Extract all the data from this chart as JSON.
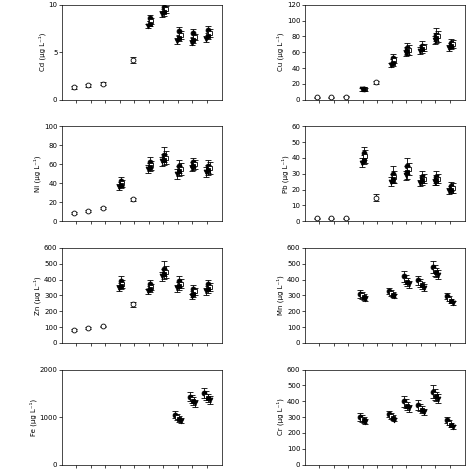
{
  "panels": [
    {
      "ylabel": "Cd (µg L⁻¹)",
      "ylim": [
        0,
        10
      ],
      "yticks": [
        0,
        5,
        10
      ],
      "col": 0,
      "row": 0,
      "series": [
        {
          "x": [
            1,
            2,
            3
          ],
          "y": [
            1.3,
            1.5,
            1.7
          ],
          "yerr": [
            0.15,
            0.15,
            0.15
          ],
          "marker": "o",
          "fill": false
        },
        {
          "x": [
            5
          ],
          "y": [
            4.2
          ],
          "yerr": [
            0.3
          ],
          "marker": "o",
          "fill": false
        },
        {
          "x": [
            6,
            7,
            8,
            9,
            10
          ],
          "y": [
            8.6,
            9.8,
            7.2,
            7.0,
            7.3
          ],
          "yerr": [
            0.35,
            0.5,
            0.5,
            0.45,
            0.5
          ],
          "marker": "o",
          "fill": true
        },
        {
          "x": [
            6,
            7,
            8,
            9,
            10
          ],
          "y": [
            8.3,
            9.5,
            6.8,
            6.6,
            7.0
          ],
          "yerr": [
            0.3,
            0.4,
            0.4,
            0.35,
            0.4
          ],
          "marker": "s",
          "fill": false
        },
        {
          "x": [
            6,
            7,
            8,
            9,
            10
          ],
          "y": [
            8.0,
            9.2,
            6.5,
            6.3,
            6.7
          ],
          "yerr": [
            0.25,
            0.35,
            0.35,
            0.3,
            0.35
          ],
          "marker": "s",
          "fill": true
        },
        {
          "x": [
            6,
            7,
            8,
            9,
            10
          ],
          "y": [
            7.8,
            9.0,
            6.2,
            6.0,
            6.4
          ],
          "yerr": [
            0.2,
            0.3,
            0.3,
            0.25,
            0.3
          ],
          "marker": "v",
          "fill": true
        }
      ]
    },
    {
      "ylabel": "Ni (µg L⁻¹)",
      "ylim": [
        0,
        100
      ],
      "yticks": [
        0,
        20,
        40,
        60,
        80,
        100
      ],
      "col": 0,
      "row": 1,
      "series": [
        {
          "x": [
            1,
            2,
            3
          ],
          "y": [
            9,
            11,
            14
          ],
          "yerr": [
            1,
            1,
            1
          ],
          "marker": "o",
          "fill": false
        },
        {
          "x": [
            5
          ],
          "y": [
            23
          ],
          "yerr": [
            2
          ],
          "marker": "o",
          "fill": false
        },
        {
          "x": [
            4,
            6,
            7,
            8,
            9,
            10
          ],
          "y": [
            42,
            62,
            70,
            58,
            62,
            58
          ],
          "yerr": [
            5,
            6,
            8,
            7,
            5,
            7
          ],
          "marker": "o",
          "fill": true
        },
        {
          "x": [
            4,
            6,
            7,
            8,
            9,
            10
          ],
          "y": [
            40,
            59,
            67,
            55,
            60,
            56
          ],
          "yerr": [
            4,
            5,
            7,
            6,
            5,
            6
          ],
          "marker": "s",
          "fill": false
        },
        {
          "x": [
            4,
            6,
            7,
            8,
            9,
            10
          ],
          "y": [
            38,
            57,
            65,
            53,
            58,
            54
          ],
          "yerr": [
            3,
            4,
            6,
            5,
            4,
            5
          ],
          "marker": "s",
          "fill": true
        },
        {
          "x": [
            4,
            6,
            7,
            8,
            9,
            10
          ],
          "y": [
            36,
            55,
            63,
            50,
            56,
            52
          ],
          "yerr": [
            3,
            4,
            5,
            5,
            3,
            5
          ],
          "marker": "v",
          "fill": true
        }
      ]
    },
    {
      "ylabel": "Zn (µg L⁻¹)",
      "ylim": [
        0,
        600
      ],
      "yticks": [
        0,
        100,
        200,
        300,
        400,
        500,
        600
      ],
      "col": 0,
      "row": 2,
      "series": [
        {
          "x": [
            1,
            2,
            3
          ],
          "y": [
            80,
            95,
            105
          ],
          "yerr": [
            5,
            5,
            5
          ],
          "marker": "o",
          "fill": false
        },
        {
          "x": [
            5
          ],
          "y": [
            245
          ],
          "yerr": [
            15
          ],
          "marker": "o",
          "fill": false
        },
        {
          "x": [
            4,
            6,
            7,
            8,
            9,
            10
          ],
          "y": [
            390,
            375,
            470,
            390,
            340,
            370
          ],
          "yerr": [
            30,
            25,
            45,
            35,
            25,
            30
          ],
          "marker": "o",
          "fill": true
        },
        {
          "x": [
            4,
            6,
            7,
            8,
            9,
            10
          ],
          "y": [
            375,
            355,
            450,
            375,
            325,
            355
          ],
          "yerr": [
            25,
            20,
            38,
            30,
            20,
            25
          ],
          "marker": "s",
          "fill": false
        },
        {
          "x": [
            4,
            6,
            7,
            8,
            9,
            10
          ],
          "y": [
            360,
            340,
            435,
            360,
            310,
            340
          ],
          "yerr": [
            20,
            18,
            32,
            25,
            18,
            22
          ],
          "marker": "s",
          "fill": true
        },
        {
          "x": [
            4,
            6,
            7,
            8,
            9,
            10
          ],
          "y": [
            345,
            325,
            420,
            345,
            295,
            325
          ],
          "yerr": [
            18,
            15,
            28,
            22,
            15,
            20
          ],
          "marker": "v",
          "fill": true
        }
      ]
    },
    {
      "ylabel": "Fe (µg L⁻¹)",
      "ylim": [
        0,
        2000
      ],
      "yticks": [
        0,
        1000,
        2000
      ],
      "col": 0,
      "row": 3,
      "series": [
        {
          "x": [
            8,
            9,
            10
          ],
          "y": [
            1050,
            1430,
            1500
          ],
          "yerr": [
            80,
            100,
            110
          ],
          "marker": "o",
          "fill": true
        },
        {
          "x": [
            8,
            9,
            10
          ],
          "y": [
            1000,
            1380,
            1450
          ],
          "yerr": [
            70,
            90,
            95
          ],
          "marker": "s",
          "fill": false
        },
        {
          "x": [
            8,
            9,
            10
          ],
          "y": [
            960,
            1340,
            1400
          ],
          "yerr": [
            60,
            80,
            90
          ],
          "marker": "s",
          "fill": true
        },
        {
          "x": [
            8,
            9,
            10
          ],
          "y": [
            920,
            1290,
            1350
          ],
          "yerr": [
            55,
            75,
            85
          ],
          "marker": "v",
          "fill": true
        }
      ]
    },
    {
      "ylabel": "Cu (µg L⁻¹)",
      "ylim": [
        0,
        120
      ],
      "yticks": [
        0,
        20,
        40,
        60,
        80,
        100,
        120
      ],
      "col": 1,
      "row": 0,
      "series": [
        {
          "x": [
            1,
            2,
            3
          ],
          "y": [
            3,
            3,
            4
          ],
          "yerr": [
            0.5,
            0.5,
            0.5
          ],
          "marker": "o",
          "fill": false
        },
        {
          "x": [
            5
          ],
          "y": [
            22
          ],
          "yerr": [
            2
          ],
          "marker": "o",
          "fill": false
        },
        {
          "x": [
            4,
            6,
            7,
            8,
            9,
            10
          ],
          "y": [
            13,
            53,
            65,
            68,
            82,
            72
          ],
          "yerr": [
            2,
            5,
            7,
            6,
            8,
            5
          ],
          "marker": "o",
          "fill": true
        },
        {
          "x": [
            4,
            6,
            7,
            8,
            9,
            10
          ],
          "y": [
            13,
            50,
            63,
            66,
            80,
            70
          ],
          "yerr": [
            2,
            4,
            6,
            5,
            7,
            5
          ],
          "marker": "s",
          "fill": false
        },
        {
          "x": [
            4,
            6,
            7,
            8,
            9,
            10
          ],
          "y": [
            13,
            47,
            61,
            64,
            78,
            68
          ],
          "yerr": [
            2,
            4,
            5,
            5,
            6,
            4
          ],
          "marker": "s",
          "fill": true
        },
        {
          "x": [
            4,
            6,
            7,
            8,
            9,
            10
          ],
          "y": [
            13,
            44,
            59,
            62,
            76,
            65
          ],
          "yerr": [
            2,
            3,
            4,
            4,
            5,
            4
          ],
          "marker": "v",
          "fill": true
        }
      ]
    },
    {
      "ylabel": "Pb (µg L⁻¹)",
      "ylim": [
        0,
        60
      ],
      "yticks": [
        0,
        10,
        20,
        30,
        40,
        50,
        60
      ],
      "col": 1,
      "row": 1,
      "series": [
        {
          "x": [
            1,
            2,
            3
          ],
          "y": [
            2,
            2,
            2
          ],
          "yerr": [
            0.3,
            0.3,
            0.3
          ],
          "marker": "o",
          "fill": false
        },
        {
          "x": [
            5
          ],
          "y": [
            15
          ],
          "yerr": [
            2
          ],
          "marker": "o",
          "fill": false
        },
        {
          "x": [
            4,
            6,
            7,
            8,
            9,
            10
          ],
          "y": [
            43,
            30,
            35,
            28,
            28,
            22
          ],
          "yerr": [
            4,
            5,
            5,
            4,
            4,
            3
          ],
          "marker": "o",
          "fill": true
        },
        {
          "x": [
            4,
            6,
            7,
            8,
            9,
            10
          ],
          "y": [
            41,
            28,
            33,
            27,
            27,
            21
          ],
          "yerr": [
            4,
            4,
            4,
            3,
            3,
            3
          ],
          "marker": "s",
          "fill": false
        },
        {
          "x": [
            4,
            6,
            7,
            8,
            9,
            10
          ],
          "y": [
            39,
            27,
            31,
            26,
            26,
            20
          ],
          "yerr": [
            3,
            3,
            4,
            3,
            3,
            2
          ],
          "marker": "s",
          "fill": true
        },
        {
          "x": [
            4,
            6,
            7,
            8,
            9,
            10
          ],
          "y": [
            37,
            25,
            29,
            24,
            25,
            19
          ],
          "yerr": [
            3,
            3,
            3,
            2,
            2,
            2
          ],
          "marker": "v",
          "fill": true
        }
      ]
    },
    {
      "ylabel": "Mn (µg L⁻¹)",
      "ylim": [
        0,
        600
      ],
      "yticks": [
        0,
        100,
        200,
        300,
        400,
        500,
        600
      ],
      "col": 1,
      "row": 2,
      "series": [
        {
          "x": [
            4,
            6,
            7,
            8,
            9,
            10
          ],
          "y": [
            310,
            330,
            420,
            395,
            480,
            295
          ],
          "yerr": [
            25,
            20,
            35,
            30,
            40,
            20
          ],
          "marker": "o",
          "fill": true
        },
        {
          "x": [
            4,
            6,
            7,
            8,
            9,
            10
          ],
          "y": [
            300,
            315,
            400,
            380,
            460,
            280
          ],
          "yerr": [
            20,
            18,
            30,
            25,
            35,
            18
          ],
          "marker": "s",
          "fill": false
        },
        {
          "x": [
            4,
            6,
            7,
            8,
            9,
            10
          ],
          "y": [
            290,
            305,
            385,
            365,
            445,
            265
          ],
          "yerr": [
            18,
            15,
            25,
            22,
            30,
            15
          ],
          "marker": "s",
          "fill": true
        },
        {
          "x": [
            4,
            6,
            7,
            8,
            9,
            10
          ],
          "y": [
            280,
            295,
            370,
            350,
            430,
            250
          ],
          "yerr": [
            15,
            12,
            22,
            20,
            28,
            12
          ],
          "marker": "v",
          "fill": true
        }
      ]
    },
    {
      "ylabel": "Cr (µg L⁻¹)",
      "ylim": [
        0,
        600
      ],
      "yticks": [
        0,
        100,
        200,
        300,
        400,
        500,
        600
      ],
      "col": 1,
      "row": 3,
      "series": [
        {
          "x": [
            4,
            6,
            7,
            8,
            9,
            10
          ],
          "y": [
            300,
            320,
            400,
            375,
            460,
            280
          ],
          "yerr": [
            25,
            20,
            35,
            30,
            40,
            20
          ],
          "marker": "o",
          "fill": true
        },
        {
          "x": [
            4,
            6,
            7,
            8,
            9,
            10
          ],
          "y": [
            290,
            308,
            385,
            360,
            445,
            265
          ],
          "yerr": [
            20,
            18,
            30,
            25,
            35,
            18
          ],
          "marker": "s",
          "fill": false
        },
        {
          "x": [
            4,
            6,
            7,
            8,
            9,
            10
          ],
          "y": [
            280,
            296,
            370,
            345,
            430,
            250
          ],
          "yerr": [
            18,
            15,
            25,
            22,
            30,
            15
          ],
          "marker": "s",
          "fill": true
        },
        {
          "x": [
            4,
            6,
            7,
            8,
            9,
            10
          ],
          "y": [
            270,
            284,
            355,
            330,
            415,
            235
          ],
          "yerr": [
            15,
            12,
            22,
            20,
            28,
            12
          ],
          "marker": "v",
          "fill": true
        }
      ]
    }
  ],
  "marker_size": 3.5,
  "capsize": 2,
  "elinewidth": 0.6,
  "capthick": 0.6,
  "markeredgewidth": 0.6
}
